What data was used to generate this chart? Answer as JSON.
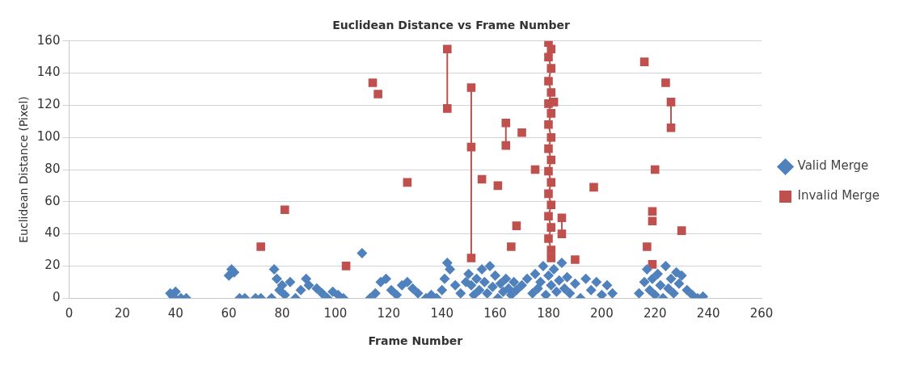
{
  "chart_data": {
    "type": "scatter",
    "title": "Euclidean Distance vs Frame Number",
    "xlabel": "Frame Number",
    "ylabel": "Euclidean Distance (Pixel)",
    "xlim": [
      0,
      260
    ],
    "xticks": [
      0,
      20,
      40,
      60,
      80,
      100,
      120,
      140,
      160,
      180,
      200,
      220,
      240,
      260
    ],
    "ylim": [
      0,
      160
    ],
    "yticks": [
      0,
      20,
      40,
      60,
      80,
      100,
      120,
      140,
      160
    ],
    "grid": "y",
    "legend": "right",
    "line_style": "solid",
    "series": [
      {
        "name": "Valid Merge",
        "color": "#4f81bd",
        "marker": "diamond",
        "x": [
          38,
          39,
          40,
          42,
          44,
          60,
          61,
          62,
          64,
          66,
          70,
          72,
          76,
          77,
          78,
          79,
          80,
          81,
          83,
          85,
          87,
          89,
          90,
          93,
          95,
          97,
          99,
          101,
          103,
          110,
          113,
          115,
          117,
          119,
          121,
          123,
          125,
          127,
          129,
          131,
          134,
          136,
          138,
          140,
          141,
          142,
          143,
          145,
          147,
          149,
          150,
          151,
          152,
          153,
          154,
          155,
          156,
          157,
          158,
          159,
          160,
          161,
          162,
          163,
          164,
          165,
          166,
          167,
          168,
          170,
          172,
          174,
          175,
          176,
          177,
          178,
          179,
          180,
          181,
          182,
          183,
          184,
          185,
          186,
          187,
          188,
          190,
          192,
          194,
          196,
          198,
          200,
          202,
          204,
          214,
          216,
          217,
          218,
          219,
          220,
          221,
          222,
          223,
          224,
          225,
          226,
          227,
          228,
          229,
          230,
          232,
          234,
          236,
          238
        ],
        "values": [
          3,
          1,
          4,
          0,
          0,
          14,
          18,
          16,
          0,
          0,
          0,
          0,
          0,
          18,
          12,
          5,
          8,
          2,
          10,
          0,
          5,
          12,
          8,
          6,
          3,
          0,
          4,
          2,
          0,
          28,
          0,
          3,
          10,
          12,
          5,
          2,
          8,
          10,
          6,
          3,
          0,
          2,
          0,
          5,
          12,
          22,
          18,
          8,
          3,
          10,
          15,
          8,
          2,
          12,
          5,
          18,
          10,
          3,
          20,
          7,
          14,
          0,
          9,
          4,
          12,
          6,
          2,
          10,
          5,
          8,
          12,
          3,
          15,
          6,
          10,
          20,
          2,
          14,
          8,
          18,
          4,
          11,
          22,
          6,
          13,
          3,
          9,
          0,
          12,
          5,
          10,
          2,
          8,
          3,
          3,
          10,
          18,
          5,
          12,
          2,
          15,
          8,
          0,
          20,
          6,
          12,
          3,
          16,
          9,
          14,
          5,
          2,
          0,
          1
        ]
      },
      {
        "name": "Invalid Merge",
        "color": "#c0504d",
        "marker": "square",
        "x": [
          72,
          81,
          104,
          114,
          116,
          127,
          155,
          161,
          166,
          168,
          170,
          175,
          182,
          190,
          197,
          216,
          224,
          220,
          219,
          219,
          217,
          219,
          230
        ],
        "values": [
          32,
          55,
          20,
          134,
          127,
          72,
          74,
          70,
          32,
          45,
          103,
          80,
          122,
          24,
          69,
          147,
          134,
          80,
          54,
          48,
          32,
          21,
          42
        ]
      },
      {
        "type": "line",
        "color": "#c0504d",
        "marker": "square",
        "x": [
          142,
          142
        ],
        "values": [
          155,
          118
        ]
      },
      {
        "type": "line",
        "color": "#c0504d",
        "marker": "square",
        "x": [
          151,
          151,
          151
        ],
        "values": [
          131,
          94,
          25
        ]
      },
      {
        "type": "line",
        "color": "#c0504d",
        "marker": "square",
        "x": [
          164,
          164
        ],
        "values": [
          109,
          95
        ]
      },
      {
        "type": "line",
        "color": "#c0504d",
        "marker": "square",
        "x": [
          180,
          181,
          180,
          181,
          180,
          181,
          180,
          181,
          180,
          181,
          180,
          181,
          180,
          181,
          180,
          181,
          180,
          181,
          180,
          181,
          181
        ],
        "values": [
          159,
          155,
          150,
          143,
          135,
          128,
          121,
          115,
          108,
          100,
          93,
          86,
          79,
          72,
          65,
          58,
          51,
          44,
          37,
          30,
          25
        ]
      },
      {
        "type": "line",
        "color": "#c0504d",
        "marker": "square",
        "x": [
          185,
          185
        ],
        "values": [
          50,
          40
        ]
      },
      {
        "type": "line",
        "color": "#c0504d",
        "marker": "square",
        "x": [
          226,
          226
        ],
        "values": [
          122,
          106
        ]
      }
    ]
  }
}
